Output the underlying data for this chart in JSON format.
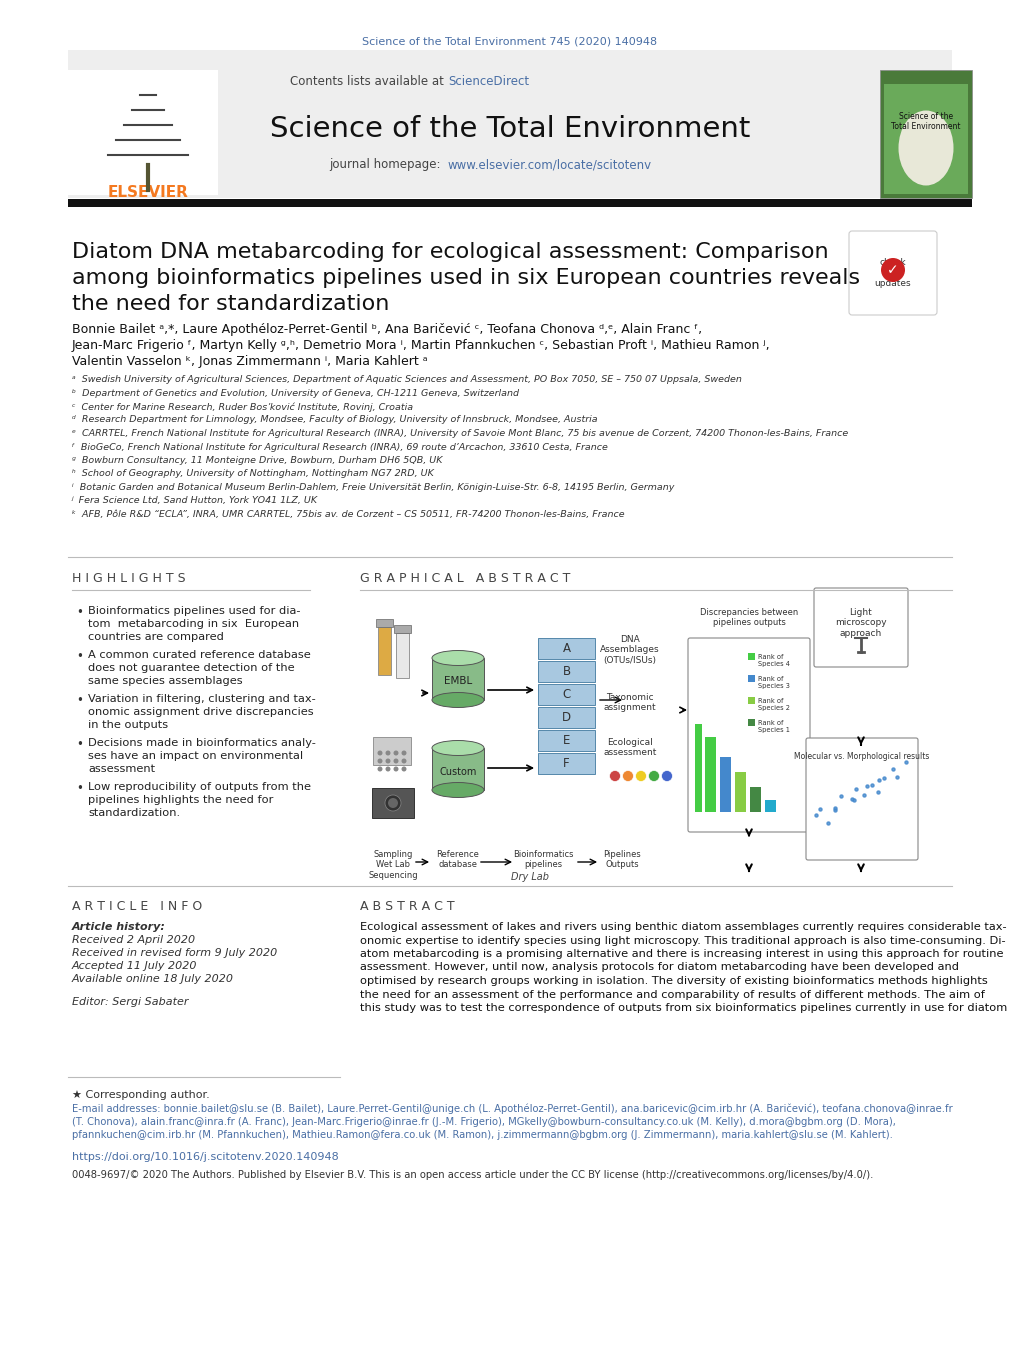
{
  "doi_text": "Science of the Total Environment 745 (2020) 140948",
  "journal_name": "Science of the Total Environment",
  "journal_homepage_plain": "journal homepage:  ",
  "journal_homepage_link": "www.elsevier.com/locate/scitotenv",
  "contents_plain": "Contents lists available at ",
  "contents_link": "ScienceDirect",
  "paper_title_line1": "Diatom DNA metabarcoding for ecological assessment: Comparison",
  "paper_title_line2": "among bioinformatics pipelines used in six European countries reveals",
  "paper_title_line3": "the need for standardization",
  "author_line1": "Bonnie Bailet ᵃ,*, Laure Apothéloz-Perret-Gentil ᵇ, Ana Baričević ᶜ, Teofana Chonova ᵈ,ᵉ, Alain Franc ᶠ,",
  "author_line2": "Jean-Marc Frigerio ᶠ, Martyn Kelly ᵍ,ʰ, Demetrio Mora ⁱ, Martin Pfannkuchen ᶜ, Sebastian Proft ⁱ, Mathieu Ramon ʲ,",
  "author_line3": "Valentin Vasselon ᵏ, Jonas Zimmermann ⁱ, Maria Kahlert ᵃ",
  "affiliations": [
    "ᵃ  Swedish University of Agricultural Sciences, Department of Aquatic Sciences and Assessment, PO Box 7050, SE – 750 07 Uppsala, Sweden",
    "ᵇ  Department of Genetics and Evolution, University of Geneva, CH-1211 Geneva, Switzerland",
    "ᶜ  Center for Marine Research, Ruder Bosʹković Institute, Rovinj, Croatia",
    "ᵈ  Research Department for Limnology, Mondsee, Faculty of Biology, University of Innsbruck, Mondsee, Austria",
    "ᵉ  CARRTEL, French National Institute for Agricultural Research (INRA), University of Savoie Mont Blanc, 75 bis avenue de Corzent, 74200 Thonon-les-Bains, France",
    "ᶠ  BioGeCo, French National Institute for Agricultural Research (INRA), 69 route d’Arcachon, 33610 Cesta, France",
    "ᵍ  Bowburn Consultancy, 11 Monteigne Drive, Bowburn, Durham DH6 5QB, UK",
    "ʰ  School of Geography, University of Nottingham, Nottingham NG7 2RD, UK",
    "ⁱ  Botanic Garden and Botanical Museum Berlin-Dahlem, Freie Universität Berlin, Königin-Luise-Str. 6-8, 14195 Berlin, Germany",
    "ʲ  Fera Science Ltd, Sand Hutton, York YO41 1LZ, UK",
    "ᵏ  AFB, Pôle R&D “ECLA”, INRA, UMR CARRTEL, 75bis av. de Corzent – CS 50511, FR-74200 Thonon-les-Bains, France"
  ],
  "highlights_title": "H I G H L I G H T S",
  "highlights": [
    "Bioinformatics pipelines used for dia-\ntom  metabarcoding in six  European\ncountries are compared",
    "A common curated reference database\ndoes not guarantee detection of the\nsame species assemblages",
    "Variation in filtering, clustering and tax-\nonomic assignment drive discrepancies\nin the outputs",
    "Decisions made in bioinformatics analy-\nses have an impact on environmental\nassessment",
    "Low reproducibility of outputs from the\npipelines highlights the need for\nstandardization."
  ],
  "graphical_abstract_title": "G R A P H I C A L   A B S T R A C T",
  "article_info_title": "A R T I C L E   I N F O",
  "article_history_label": "Article history:",
  "article_history_lines": [
    "Received 2 April 2020",
    "Received in revised form 9 July 2020",
    "Accepted 11 July 2020",
    "Available online 18 July 2020"
  ],
  "editor_line": "Editor: Sergi Sabater",
  "abstract_title": "A B S T R A C T",
  "abstract_lines": [
    "Ecological assessment of lakes and rivers using benthic diatom assemblages currently requires considerable tax-",
    "onomic expertise to identify species using light microscopy. This traditional approach is also time-consuming. Di-",
    "atom metabarcoding is a promising alternative and there is increasing interest in using this approach for routine",
    "assessment. However, until now, analysis protocols for diatom metabarcoding have been developed and",
    "optimised by research groups working in isolation. The diversity of existing bioinformatics methods highlights",
    "the need for an assessment of the performance and comparability of results of different methods. The aim of",
    "this study was to test the correspondence of outputs from six bioinformatics pipelines currently in use for diatom"
  ],
  "corresponding_star": "★ Corresponding author.",
  "email_lines": [
    "E-mail addresses: bonnie.bailet@slu.se (B. Bailet), Laure.Perret-Gentil@unige.ch (L. Apothéloz-Perret-Gentil), ana.baricevic@cim.irb.hr (A. Baričević), teofana.chonova@inrae.fr",
    "(T. Chonova), alain.franc@inra.fr (A. Franc), Jean-Marc.Frigerio@inrae.fr (J.-M. Frigerio), MGkelly@bowburn-consultancy.co.uk (M. Kelly), d.mora@bgbm.org (D. Mora),",
    "pfannkuchen@cim.irb.hr (M. Pfannkuchen), Mathieu.Ramon@fera.co.uk (M. Ramon), j.zimmermann@bgbm.org (J. Zimmermann), maria.kahlert@slu.se (M. Kahlert)."
  ],
  "doi_footer": "https://doi.org/10.1016/j.scitotenv.2020.140948",
  "license_text": "0048-9697/© 2020 The Authors. Published by Elsevier B.V. This is an open access article under the CC BY license (http://creativecommons.org/licenses/by/4.0/).",
  "bg_color": "#ffffff",
  "header_bg": "#eeeeee",
  "doi_color": "#4a6fa5",
  "link_color": "#4a6fa5",
  "text_color": "#111111",
  "elsevier_orange": "#f47920",
  "thick_bar_color": "#111111",
  "gray_line_color": "#aaaaaa",
  "pipeline_box_color": "#a8c8e0",
  "elsevier_logo_text": "ELSEVIER"
}
